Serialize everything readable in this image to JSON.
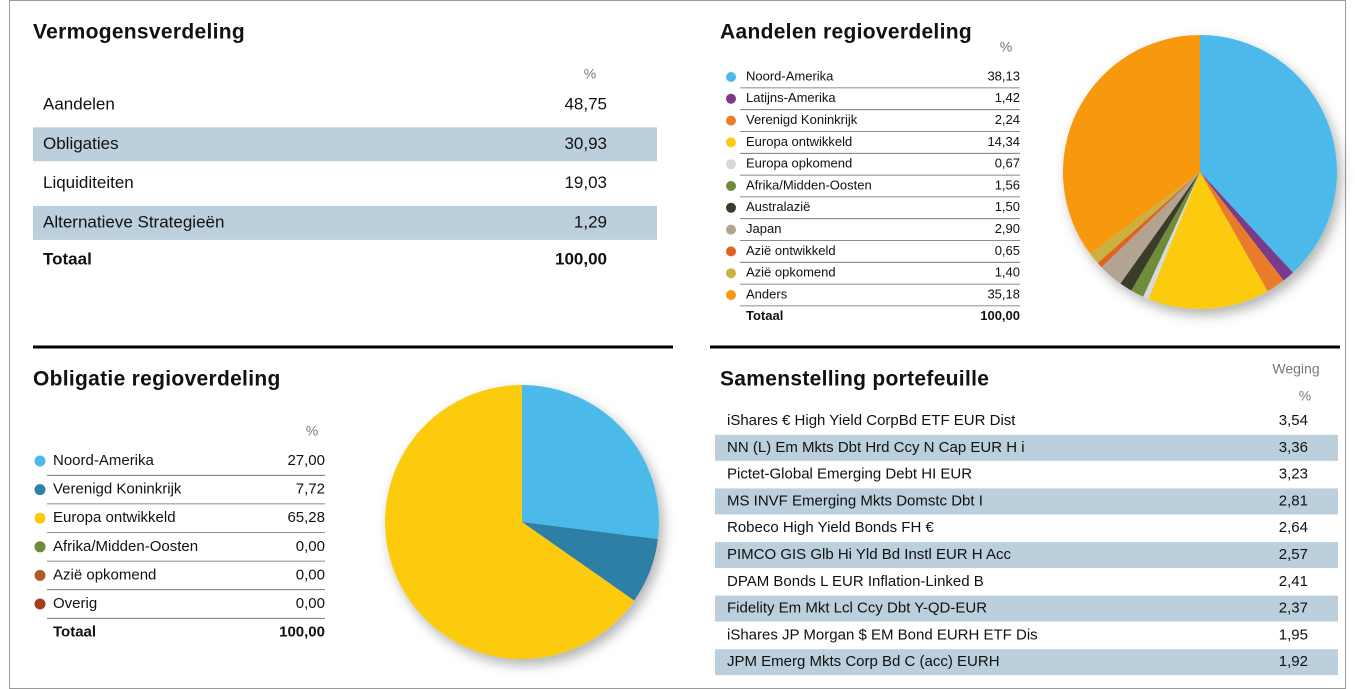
{
  "vermogensverdeling": {
    "title": "Vermogensverdeling",
    "unit": "%",
    "rows": [
      {
        "label": "Aandelen",
        "value": "48,75"
      },
      {
        "label": "Obligaties",
        "value": "30,93"
      },
      {
        "label": "Liquiditeiten",
        "value": "19,03"
      },
      {
        "label": "Alternatieve Strategieën",
        "value": "1,29"
      }
    ],
    "total": {
      "label": "Totaal",
      "value": "100,00"
    }
  },
  "aandelen_regioverdeling": {
    "type": "pie",
    "title": "Aandelen regioverdeling",
    "unit": "%",
    "categories": [
      "Noord-Amerika",
      "Latijns-Amerika",
      "Verenigd Koninkrijk",
      "Europa ontwikkeld",
      "Europa opkomend",
      "Afrika/Midden-Oosten",
      "Australazië",
      "Japan",
      "Azië ontwikkeld",
      "Azië opkomend",
      "Anders"
    ],
    "values": [
      38.13,
      1.42,
      2.24,
      14.34,
      0.67,
      1.56,
      1.5,
      2.9,
      0.65,
      1.4,
      35.18
    ],
    "value_labels": [
      "38,13",
      "1,42",
      "2,24",
      "14,34",
      "0,67",
      "1,56",
      "1,50",
      "2,90",
      "0,65",
      "1,40",
      "35,18"
    ],
    "colors": [
      "#4bb9ea",
      "#7a3b8c",
      "#e87c2b",
      "#fdcb0b",
      "#d9d9d9",
      "#6e8c3a",
      "#3b3a2c",
      "#b3a391",
      "#e0621e",
      "#cbb23f",
      "#f8990f"
    ],
    "total": {
      "label": "Totaal",
      "value": "100,00"
    }
  },
  "obligatie_regioverdeling": {
    "type": "pie",
    "title": "Obligatie regioverdeling",
    "unit": "%",
    "categories": [
      "Noord-Amerika",
      "Verenigd Koninkrijk",
      "Europa ontwikkeld",
      "Afrika/Midden-Oosten",
      "Azië opkomend",
      "Overig"
    ],
    "values": [
      27.0,
      7.72,
      65.28,
      0.0,
      0.0,
      0.0
    ],
    "value_labels": [
      "27,00",
      "7,72",
      "65,28",
      "0,00",
      "0,00",
      "0,00"
    ],
    "colors": [
      "#4bb9ea",
      "#2f7fa6",
      "#fdcb0b",
      "#6e8c3a",
      "#b05a2a",
      "#a3401a"
    ],
    "total": {
      "label": "Totaal",
      "value": "100,00"
    }
  },
  "samenstelling_portefeuille": {
    "title": "Samenstelling portefeuille",
    "header": "Weging",
    "unit": "%",
    "rows": [
      {
        "label": "iShares € High Yield CorpBd ETF EUR Dist",
        "value": "3,54"
      },
      {
        "label": "NN (L) Em Mkts Dbt Hrd Ccy N Cap EUR H i",
        "value": "3,36"
      },
      {
        "label": "Pictet-Global Emerging Debt HI EUR",
        "value": "3,23"
      },
      {
        "label": "MS INVF Emerging Mkts Domstc Dbt I",
        "value": "2,81"
      },
      {
        "label": "Robeco High Yield Bonds FH €",
        "value": "2,64"
      },
      {
        "label": "PIMCO GIS Glb Hi Yld Bd Instl EUR H Acc",
        "value": "2,57"
      },
      {
        "label": "DPAM Bonds L EUR Inflation-Linked B",
        "value": "2,41"
      },
      {
        "label": "Fidelity Em Mkt Lcl Ccy Dbt Y-QD-EUR",
        "value": "2,37"
      },
      {
        "label": "iShares JP Morgan $ EM Bond EURH ETF Dis",
        "value": "1,95"
      },
      {
        "label": "JPM Emerg Mkts Corp Bd C (acc) EURH",
        "value": "1,92"
      }
    ]
  }
}
